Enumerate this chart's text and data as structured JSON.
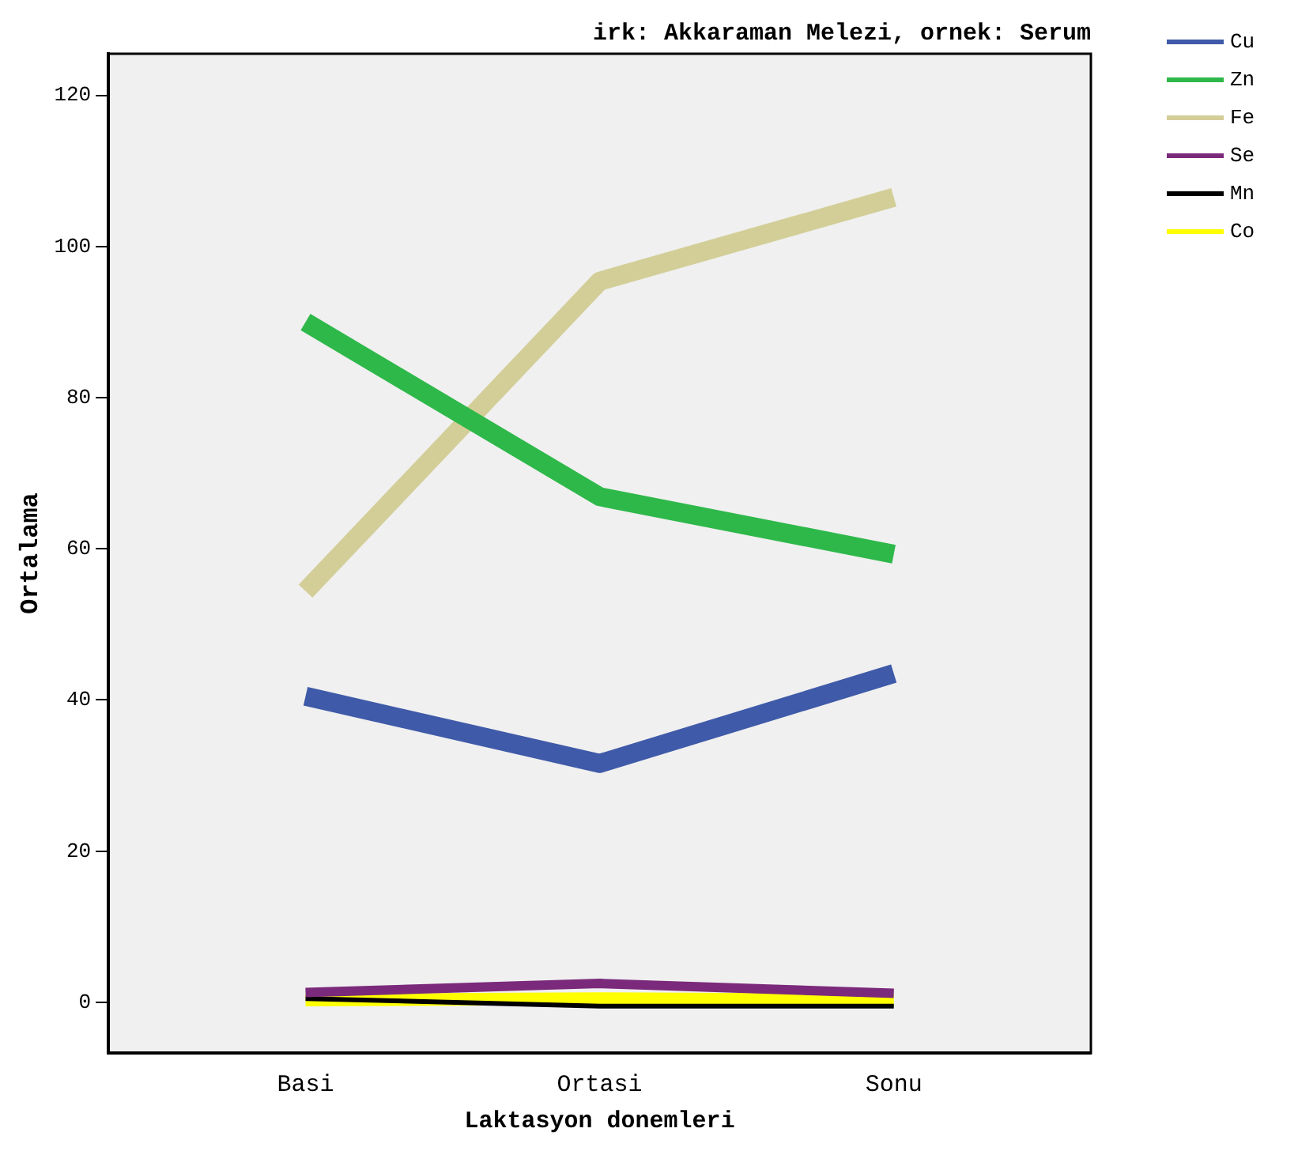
{
  "chart_data": {
    "type": "line",
    "title": "irk: Akkaraman Melezi, ornek: Serum",
    "xlabel": "Laktasyon donemleri",
    "ylabel": "Ortalama",
    "categories": [
      "Basi",
      "Ortasi",
      "Sonu"
    ],
    "series": [
      {
        "name": "Cu",
        "color": "#3f5aa8",
        "values": [
          40.5,
          31.6,
          43.5
        ]
      },
      {
        "name": "Zn",
        "color": "#2eb84a",
        "values": [
          90,
          66.9,
          59.3
        ]
      },
      {
        "name": "Fe",
        "color": "#d3ce98",
        "values": [
          54.4,
          95.4,
          106.5
        ]
      },
      {
        "name": "Se",
        "color": "#7b2a7b",
        "values": [
          1.3,
          2.5,
          1.2
        ]
      },
      {
        "name": "Mn",
        "color": "#000000",
        "values": [
          0.5,
          -0.5,
          -0.5
        ]
      },
      {
        "name": "Co",
        "color": "#ffff00",
        "values": [
          0.3,
          0.5,
          0.3
        ]
      }
    ],
    "ylim": [
      -6.7,
      125.5
    ],
    "yticks": [
      0,
      20,
      40,
      60,
      80,
      100,
      120
    ],
    "grid": false,
    "legend": "top right",
    "marker": "none",
    "line_style": "solid"
  }
}
